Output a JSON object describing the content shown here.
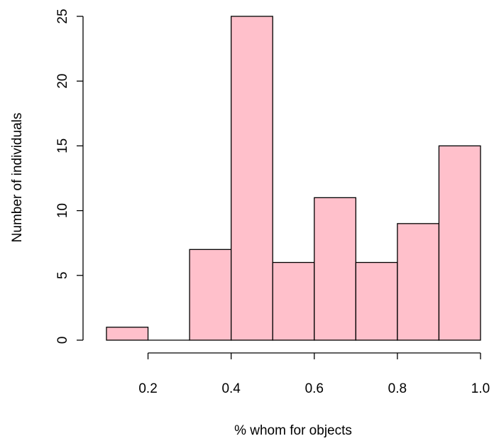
{
  "chart_data": {
    "type": "bar",
    "title": "",
    "xlabel": "% whom for objects",
    "ylabel": "Number of individuals",
    "bins": [
      {
        "from": 0.1,
        "to": 0.2,
        "count": 1
      },
      {
        "from": 0.2,
        "to": 0.3,
        "count": 0
      },
      {
        "from": 0.3,
        "to": 0.4,
        "count": 7
      },
      {
        "from": 0.4,
        "to": 0.5,
        "count": 25
      },
      {
        "from": 0.5,
        "to": 0.6,
        "count": 6
      },
      {
        "from": 0.6,
        "to": 0.7,
        "count": 11
      },
      {
        "from": 0.7,
        "to": 0.8,
        "count": 6
      },
      {
        "from": 0.8,
        "to": 0.9,
        "count": 9
      },
      {
        "from": 0.9,
        "to": 1.0,
        "count": 15
      }
    ],
    "xlim": [
      0.1,
      1.0
    ],
    "ylim": [
      0,
      25
    ],
    "x_ticks": [
      0.2,
      0.4,
      0.6,
      0.8,
      1.0
    ],
    "x_tick_labels": [
      "0.2",
      "0.4",
      "0.6",
      "0.8",
      "1.0"
    ],
    "y_ticks": [
      0,
      5,
      10,
      15,
      20,
      25
    ],
    "y_tick_labels": [
      "0",
      "5",
      "10",
      "15",
      "20",
      "25"
    ],
    "bar_color": "#ffc0cb",
    "grid": false,
    "legend": "none"
  }
}
